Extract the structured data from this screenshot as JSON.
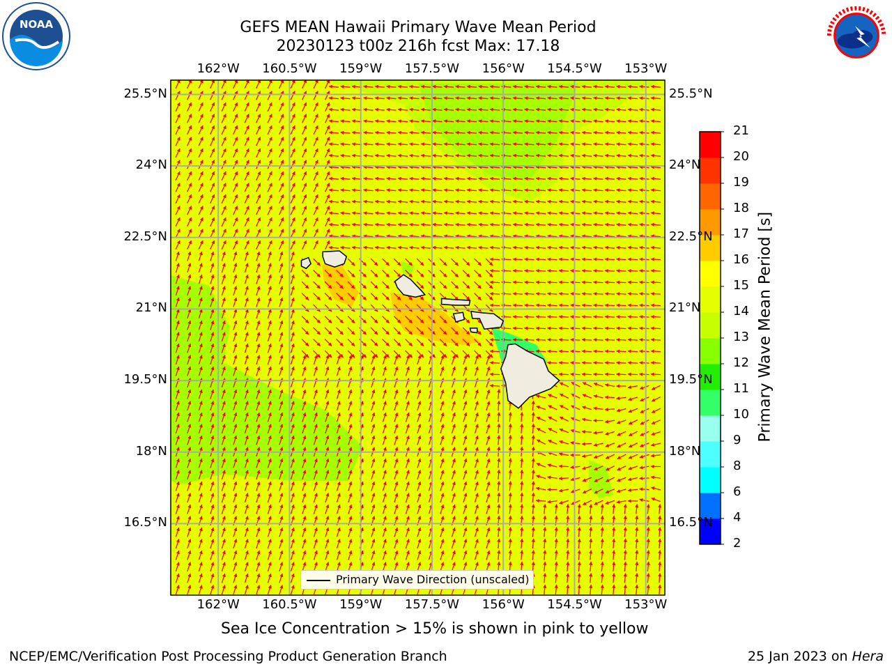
{
  "title": {
    "line1": "GEFS MEAN Hawaii Primary Wave Mean Period",
    "line2": "20230123 t00z 216h fcst   Max: 17.18"
  },
  "map": {
    "lon_labels": [
      "162°W",
      "160.5°W",
      "159°W",
      "157.5°W",
      "156°W",
      "154.5°W",
      "153°W"
    ],
    "lat_labels": [
      "25.5°N",
      "24°N",
      "22.5°N",
      "21°N",
      "19.5°N",
      "18°N",
      "16.5°N"
    ],
    "lon_extent": [
      -163.0,
      -152.6
    ],
    "lat_extent": [
      15.0,
      25.8
    ],
    "ocean_color": "#e6ff00",
    "land_color": "#f0ece0",
    "grid_color": "#aaaaaa",
    "arrow_color": "#ff0000",
    "islands": [
      "Niihau",
      "Kauai",
      "Oahu",
      "Molokai",
      "Lanai",
      "Maui",
      "Kahoolawe",
      "Hawaii"
    ]
  },
  "legend": {
    "label": "Primary Wave Direction (unscaled)"
  },
  "colorbar": {
    "label": "Primary Wave Mean Period [s]",
    "ticks": [
      "2",
      "4",
      "6",
      "8",
      "9",
      "10",
      "11",
      "12",
      "13",
      "14",
      "15",
      "16",
      "17",
      "18",
      "19",
      "20",
      "21"
    ],
    "colors": [
      "#0000ff",
      "#0070ff",
      "#00ffff",
      "#4dffff",
      "#99ffee",
      "#33ff66",
      "#22ee00",
      "#88ff00",
      "#c8ff00",
      "#e6ff00",
      "#ffff00",
      "#ffcc00",
      "#ff9900",
      "#ff6600",
      "#ff3300",
      "#ff0000"
    ]
  },
  "note": "Sea Ice Concentration > 15% is shown in pink to yellow",
  "footer": {
    "left": "NCEP/EMC/Verification Post Processing Product Generation Branch",
    "date": "25 Jan 2023 on",
    "host": "Hera"
  },
  "logos": {
    "noaa": "NOAA",
    "nws": "NATIONAL WEATHER SERVICE"
  }
}
